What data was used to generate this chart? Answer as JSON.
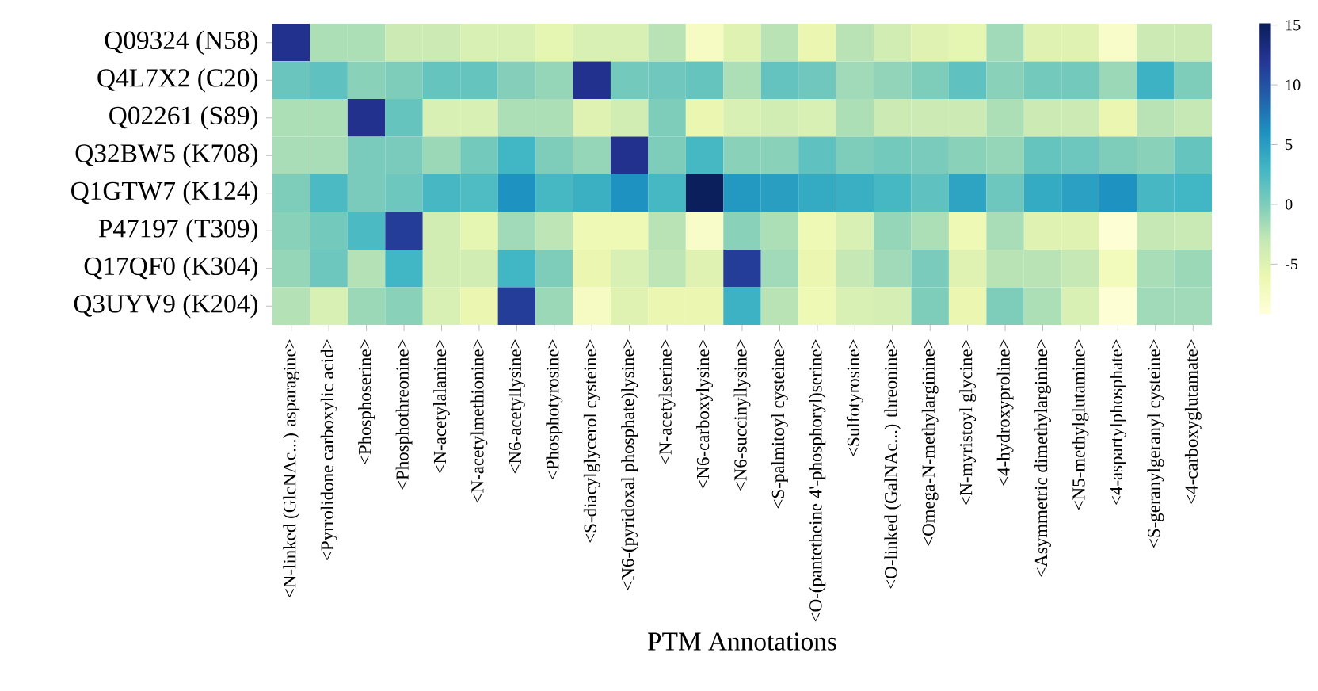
{
  "chart_data": {
    "type": "heatmap",
    "xlabel": "PTM Annotations",
    "categories": [
      "<N-linked (GlcNAc...) asparagine>",
      "<Pyrrolidone carboxylic acid>",
      "<Phosphoserine>",
      "<Phosphothreonine>",
      "<N-acetylalanine>",
      "<N-acetylmethionine>",
      "<N6-acetyllysine>",
      "<Phosphotyrosine>",
      "<S-diacylglycerol cysteine>",
      "<N6-(pyridoxal phosphate)lysine>",
      "<N-acetylserine>",
      "<N6-carboxylysine>",
      "<N6-succinyllysine>",
      "<S-palmitoyl cysteine>",
      "<O-(pantetheine 4'-phosphoryl)serine>",
      "<Sulfotyrosine>",
      "<O-linked (GalNAc...) threonine>",
      "<Omega-N-methylarginine>",
      "<N-myristoyl glycine>",
      "<4-hydroxyproline>",
      "<Asymmetric dimethylarginine>",
      "<N5-methylglutamine>",
      "<4-aspartylphosphate>",
      "<S-geranylgeranyl cysteine>",
      "<4-carboxyglutamate>"
    ],
    "y_categories": [
      "Q09324 (N58)",
      "Q4L7X2 (C20)",
      "Q02261 (S89)",
      "Q32BW5 (K708)",
      "Q1GTW7 (K124)",
      "P47197 (T309)",
      "Q17QF0 (K304)",
      "Q3UYV9 (K204)"
    ],
    "cells": [
      [
        12.5,
        -2,
        -2,
        -3.5,
        -3.5,
        -4.5,
        -4.5,
        -5.5,
        -4.5,
        -4.5,
        -2.5,
        -7.5,
        -5,
        -2.5,
        -6,
        -2.5,
        -4,
        -5,
        -5.5,
        -1.5,
        -5,
        -5,
        -8,
        -3.5,
        -3.5
      ],
      [
        1,
        1.5,
        -0.5,
        0,
        1.2,
        1.2,
        -0.3,
        -1,
        12.5,
        0.5,
        0.7,
        1.2,
        -2,
        1.3,
        0.7,
        -1.5,
        -0.8,
        0,
        1.5,
        -0.5,
        0.5,
        0.5,
        -1.2,
        3.3,
        0
      ],
      [
        -2,
        -2,
        12.5,
        1.2,
        -4.5,
        -4.5,
        -2,
        -2,
        -5,
        -4,
        0,
        -6,
        -4.5,
        -4,
        -4.5,
        -2,
        -3.5,
        -3.5,
        -3.5,
        -2,
        -3.5,
        -3.5,
        -6,
        -2.5,
        -3
      ],
      [
        -1.8,
        -1.8,
        0.2,
        0.2,
        -1.2,
        0.5,
        3,
        0,
        -1,
        12.5,
        0,
        2.8,
        -0.5,
        -0.5,
        1.5,
        0,
        0.5,
        0.2,
        -0.5,
        -1,
        1.2,
        0.8,
        0,
        -0.5,
        1.2
      ],
      [
        0,
        2.5,
        0.2,
        0.8,
        2.7,
        2.3,
        6,
        2.8,
        3.5,
        6,
        2.8,
        15,
        5.5,
        5,
        4,
        3.6,
        2.8,
        1.5,
        4.5,
        0.8,
        4,
        4.8,
        6,
        2.7,
        3
      ],
      [
        -0.5,
        0.5,
        2.5,
        11.5,
        -4,
        -5.5,
        -1.5,
        -2.7,
        -6.5,
        -6.5,
        -2.5,
        -8,
        -0.5,
        -2,
        -6.5,
        -4.5,
        -1,
        -2,
        -6.5,
        -1.8,
        -5,
        -5,
        -8.8,
        -3,
        -3.3
      ],
      [
        -1,
        0.8,
        -2.3,
        3,
        -4,
        -4,
        3,
        0,
        -6,
        -4.5,
        -2.7,
        -5,
        11.5,
        -1.5,
        -6,
        -3,
        -1.5,
        0.2,
        -5,
        -2.5,
        -2.5,
        -3,
        -7,
        -1.8,
        -1.2
      ],
      [
        -2.3,
        -4.5,
        -1.2,
        -0.5,
        -4.5,
        -6,
        11.5,
        -1.2,
        -7.5,
        -5,
        -6,
        -6,
        3.3,
        -2.5,
        -6.5,
        -4.5,
        -4.2,
        0,
        -6,
        0,
        -2,
        -4.5,
        -8.8,
        -1.5,
        -1.5
      ]
    ],
    "clim": [
      -9.2,
      15.2
    ],
    "cticks": [
      -5,
      0,
      5,
      10,
      15
    ]
  }
}
